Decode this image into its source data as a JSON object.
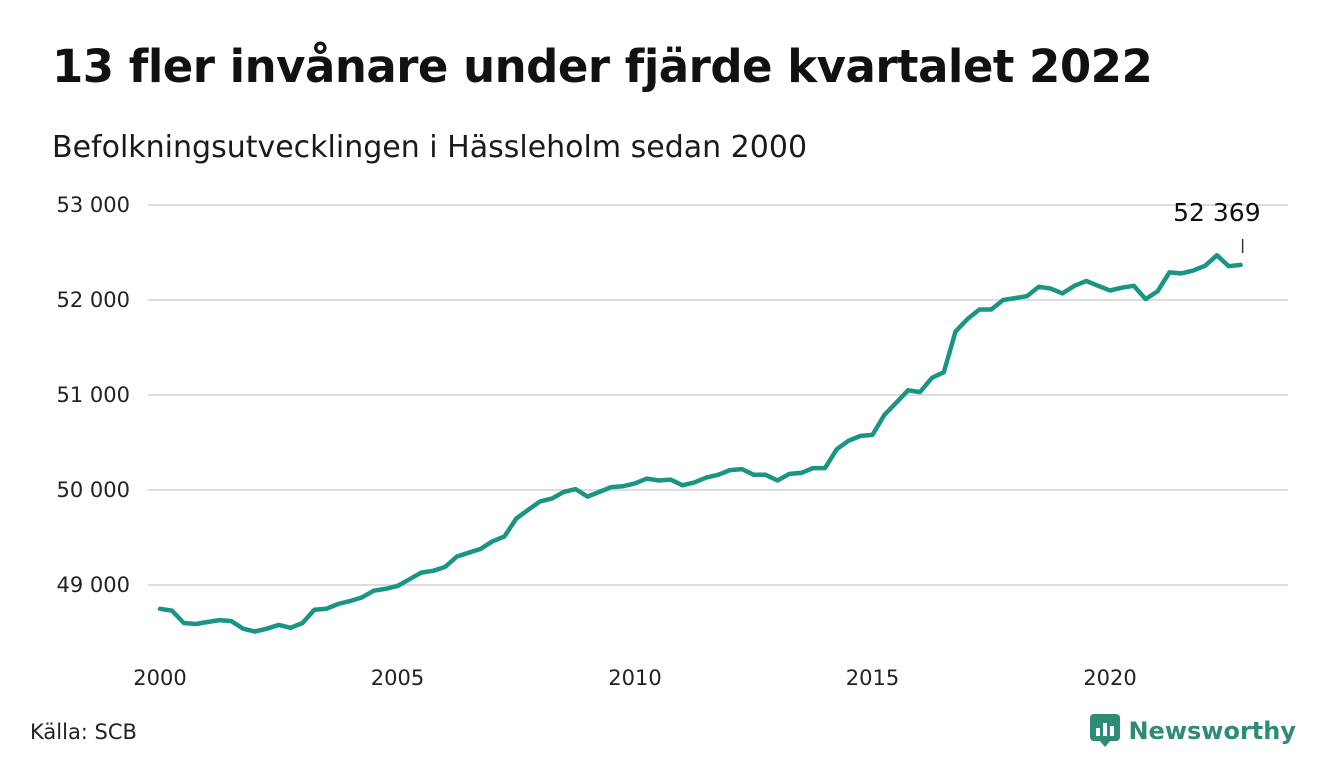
{
  "title": "13 fler invånare under fjärde kvartalet 2022",
  "subtitle": "Befolkningsutvecklingen i Hässleholm sedan 2000",
  "source": "Källa: SCB",
  "brand": {
    "name": "Newsworthy",
    "icon": "chart-bubble-icon",
    "color": "#2e8b76"
  },
  "colors": {
    "line": "#1a9583",
    "grid": "#dddddd"
  },
  "chart_data": {
    "type": "line",
    "title": "13 fler invånare under fjärde kvartalet 2022",
    "subtitle": "Befolkningsutvecklingen i Hässleholm sedan 2000",
    "xlabel": "",
    "ylabel": "",
    "xlim": [
      2000,
      2023.6
    ],
    "ylim": [
      48400,
      53200
    ],
    "x_ticks": [
      2000,
      2005,
      2010,
      2015,
      2020
    ],
    "x_tick_labels": [
      "2000",
      "2005",
      "2010",
      "2015",
      "2020"
    ],
    "y_ticks": [
      49000,
      50000,
      51000,
      52000,
      53000
    ],
    "y_tick_labels": [
      "49 000",
      "50 000",
      "51 000",
      "52 000",
      "53 000"
    ],
    "grid": "horizontal",
    "series": [
      {
        "name": "",
        "x": [
          2000.0,
          2000.25,
          2000.5,
          2000.75,
          2001.0,
          2001.25,
          2001.5,
          2001.75,
          2002.0,
          2002.25,
          2002.5,
          2002.75,
          2003.0,
          2003.25,
          2003.5,
          2003.75,
          2004.0,
          2004.25,
          2004.5,
          2004.75,
          2005.0,
          2005.25,
          2005.5,
          2005.75,
          2006.0,
          2006.25,
          2006.5,
          2006.75,
          2007.0,
          2007.25,
          2007.5,
          2007.75,
          2008.0,
          2008.25,
          2008.5,
          2008.75,
          2009.0,
          2009.25,
          2009.5,
          2009.75,
          2010.0,
          2010.25,
          2010.5,
          2010.75,
          2011.0,
          2011.25,
          2011.5,
          2011.75,
          2012.0,
          2012.25,
          2012.5,
          2012.75,
          2013.0,
          2013.25,
          2013.5,
          2013.75,
          2014.0,
          2014.25,
          2014.5,
          2014.75,
          2015.0,
          2015.25,
          2015.5,
          2015.75,
          2016.0,
          2016.25,
          2016.5,
          2016.75,
          2017.0,
          2017.25,
          2017.5,
          2017.75,
          2018.0,
          2018.25,
          2018.5,
          2018.75,
          2019.0,
          2019.25,
          2019.5,
          2019.75,
          2020.0,
          2020.25,
          2020.5,
          2020.75,
          2021.0,
          2021.25,
          2021.5,
          2021.75,
          2022.0,
          2022.25,
          2022.5,
          2022.75
        ],
        "values": [
          48750,
          48730,
          48600,
          48590,
          48610,
          48630,
          48620,
          48540,
          48510,
          48540,
          48580,
          48550,
          48600,
          48740,
          48750,
          48800,
          48830,
          48870,
          48940,
          48960,
          48990,
          49060,
          49130,
          49150,
          49190,
          49300,
          49340,
          49380,
          49460,
          49510,
          49700,
          49790,
          49880,
          49910,
          49980,
          50010,
          49930,
          49980,
          50030,
          50040,
          50070,
          50120,
          50100,
          50110,
          50050,
          50080,
          50130,
          50160,
          50210,
          50220,
          50160,
          50160,
          50100,
          50170,
          50180,
          50230,
          50230,
          50430,
          50520,
          50570,
          50580,
          50790,
          50920,
          51050,
          51030,
          51180,
          51240,
          51670,
          51800,
          51900,
          51900,
          52000,
          52020,
          52040,
          52140,
          52120,
          52070,
          52150,
          52200,
          52150,
          52100,
          52130,
          52150,
          52010,
          52090,
          52290,
          52280,
          52310,
          52360,
          52470,
          52356,
          52369
        ]
      }
    ],
    "annotations": [
      {
        "text": "52 369",
        "x": 2022.75,
        "y": 52369
      }
    ]
  }
}
